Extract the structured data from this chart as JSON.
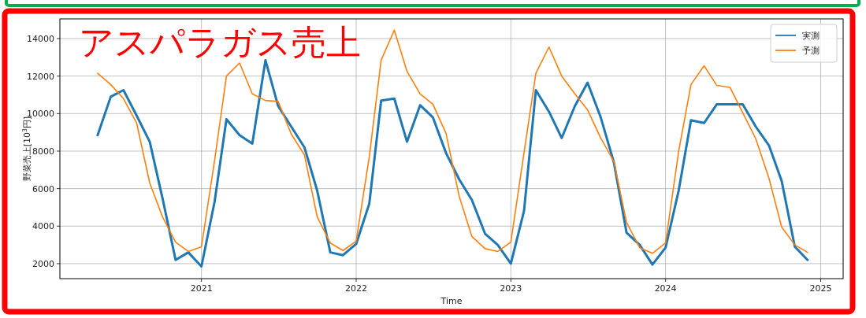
{
  "chart_data": {
    "type": "line",
    "title": "アスパラガス売上",
    "xlabel": "Time",
    "ylabel": "野菜売上[10$^{3}$円]",
    "x": [
      "2020-05",
      "2020-06",
      "2020-07",
      "2020-08",
      "2020-09",
      "2020-10",
      "2020-11",
      "2020-12",
      "2021-01",
      "2021-02",
      "2021-03",
      "2021-04",
      "2021-05",
      "2021-06",
      "2021-07",
      "2021-08",
      "2021-09",
      "2021-10",
      "2021-11",
      "2021-12",
      "2022-01",
      "2022-02",
      "2022-03",
      "2022-04",
      "2022-05",
      "2022-06",
      "2022-07",
      "2022-08",
      "2022-09",
      "2022-10",
      "2022-11",
      "2022-12",
      "2023-01",
      "2023-02",
      "2023-03",
      "2023-04",
      "2023-05",
      "2023-06",
      "2023-07",
      "2023-08",
      "2023-09",
      "2023-10",
      "2023-11",
      "2023-12",
      "2024-01",
      "2024-02",
      "2024-03",
      "2024-04",
      "2024-05",
      "2024-06",
      "2024-07",
      "2024-08",
      "2024-09",
      "2024-10",
      "2024-11",
      "2024-12"
    ],
    "series": [
      {
        "name": "実測",
        "color": "#1f77b4",
        "values": [
          8850,
          10900,
          11250,
          9900,
          8500,
          5500,
          2200,
          2600,
          1850,
          5300,
          9700,
          8850,
          8400,
          12850,
          10400,
          9300,
          8200,
          5900,
          2600,
          2450,
          3050,
          5200,
          10700,
          10800,
          8500,
          10450,
          9800,
          7900,
          6500,
          5400,
          3600,
          3000,
          2000,
          4800,
          11250,
          10100,
          8700,
          10400,
          11650,
          9800,
          7400,
          3650,
          3000,
          1950,
          2850,
          5900,
          9650,
          9500,
          10500,
          10500,
          10500,
          9300,
          8300,
          6400,
          2900,
          2200
        ]
      },
      {
        "name": "予測",
        "color": "#ff7f0e",
        "values": [
          12150,
          11550,
          10800,
          9500,
          6300,
          4500,
          3150,
          2650,
          2900,
          7500,
          12000,
          12700,
          11050,
          10700,
          10650,
          8900,
          7800,
          4500,
          3100,
          2700,
          3200,
          7700,
          12850,
          14450,
          12250,
          11050,
          10500,
          8950,
          5600,
          3450,
          2800,
          2650,
          3150,
          7900,
          12150,
          13550,
          12000,
          11050,
          10200,
          8700,
          7450,
          4200,
          2850,
          2550,
          3100,
          8000,
          11550,
          12550,
          11500,
          11400,
          10050,
          8650,
          6550,
          3950,
          3000,
          2600
        ]
      }
    ],
    "xlim": [
      "2020-02-02",
      "2025-02-23"
    ],
    "ylim": [
      1200,
      15050
    ],
    "xticks": [
      "2021",
      "2022",
      "2023",
      "2024",
      "2025"
    ],
    "yticks": [
      2000,
      4000,
      6000,
      8000,
      10000,
      12000,
      14000
    ],
    "grid": true,
    "legend": "top right",
    "line_style": "solid",
    "marker": "none"
  }
}
